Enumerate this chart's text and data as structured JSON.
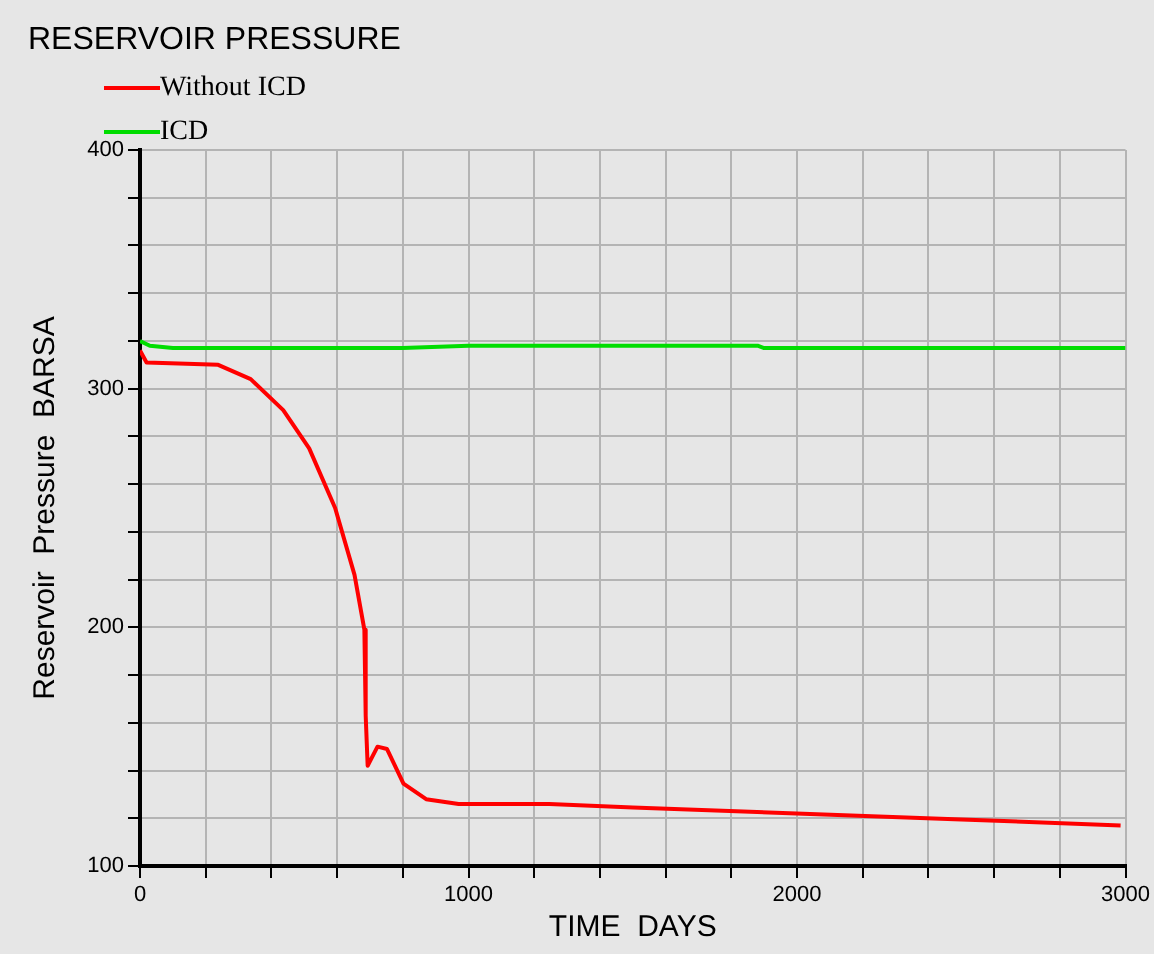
{
  "chart_data": {
    "type": "line",
    "title": "RESERVOIR PRESSURE",
    "xlabel": "TIME  DAYS",
    "ylabel": "Reservoir  Pressure  BARSA",
    "series": [
      {
        "name": "Without ICD",
        "color": "#ff0000",
        "x": [
          0,
          20,
          238,
          337,
          436,
          515,
          594,
          653,
          683,
          687,
          693,
          723,
          752,
          802,
          871,
          970,
          1246,
          1500,
          1998,
          2500,
          2985
        ],
        "values": [
          316,
          311,
          310,
          304,
          291,
          275,
          250,
          222,
          199,
          163,
          142,
          150,
          149,
          134.5,
          128,
          126,
          126,
          124.5,
          122,
          119.5,
          117
        ]
      },
      {
        "name": "ICD",
        "color": "#00dd00",
        "x": [
          0,
          30,
          100,
          800,
          1000,
          1880,
          1900,
          3000
        ],
        "values": [
          320,
          318,
          317,
          317,
          318,
          318,
          317,
          317
        ]
      }
    ],
    "xlim": [
      0,
      3000
    ],
    "xticks": [
      0,
      {
        "value": 200,
        "label": null
      },
      {
        "value": 400,
        "label": null
      },
      {
        "value": 600,
        "label": null
      },
      {
        "value": 800,
        "label": null
      },
      1000,
      {
        "value": 1200,
        "label": null
      },
      {
        "value": 1400,
        "label": null
      },
      {
        "value": 1600,
        "label": null
      },
      {
        "value": 1800,
        "label": null
      },
      2000,
      {
        "value": 2200,
        "label": null
      },
      {
        "value": 2400,
        "label": null
      },
      {
        "value": 2600,
        "label": null
      },
      {
        "value": 2800,
        "label": null
      },
      3000
    ],
    "ylim": [
      100,
      400
    ],
    "yticks": [
      100,
      {
        "value": 120,
        "label": null
      },
      {
        "value": 140,
        "label": null
      },
      {
        "value": 160,
        "label": null
      },
      {
        "value": 180,
        "label": null
      },
      200,
      {
        "value": 220,
        "label": null
      },
      {
        "value": 240,
        "label": null
      },
      {
        "value": 260,
        "label": null
      },
      {
        "value": 280,
        "label": null
      },
      300,
      {
        "value": 320,
        "label": null
      },
      {
        "value": 340,
        "label": null
      },
      {
        "value": 360,
        "label": null
      },
      {
        "value": 380,
        "label": null
      },
      400
    ],
    "grid": true,
    "legend": "top left",
    "marker": "none",
    "line_style": "solid"
  }
}
